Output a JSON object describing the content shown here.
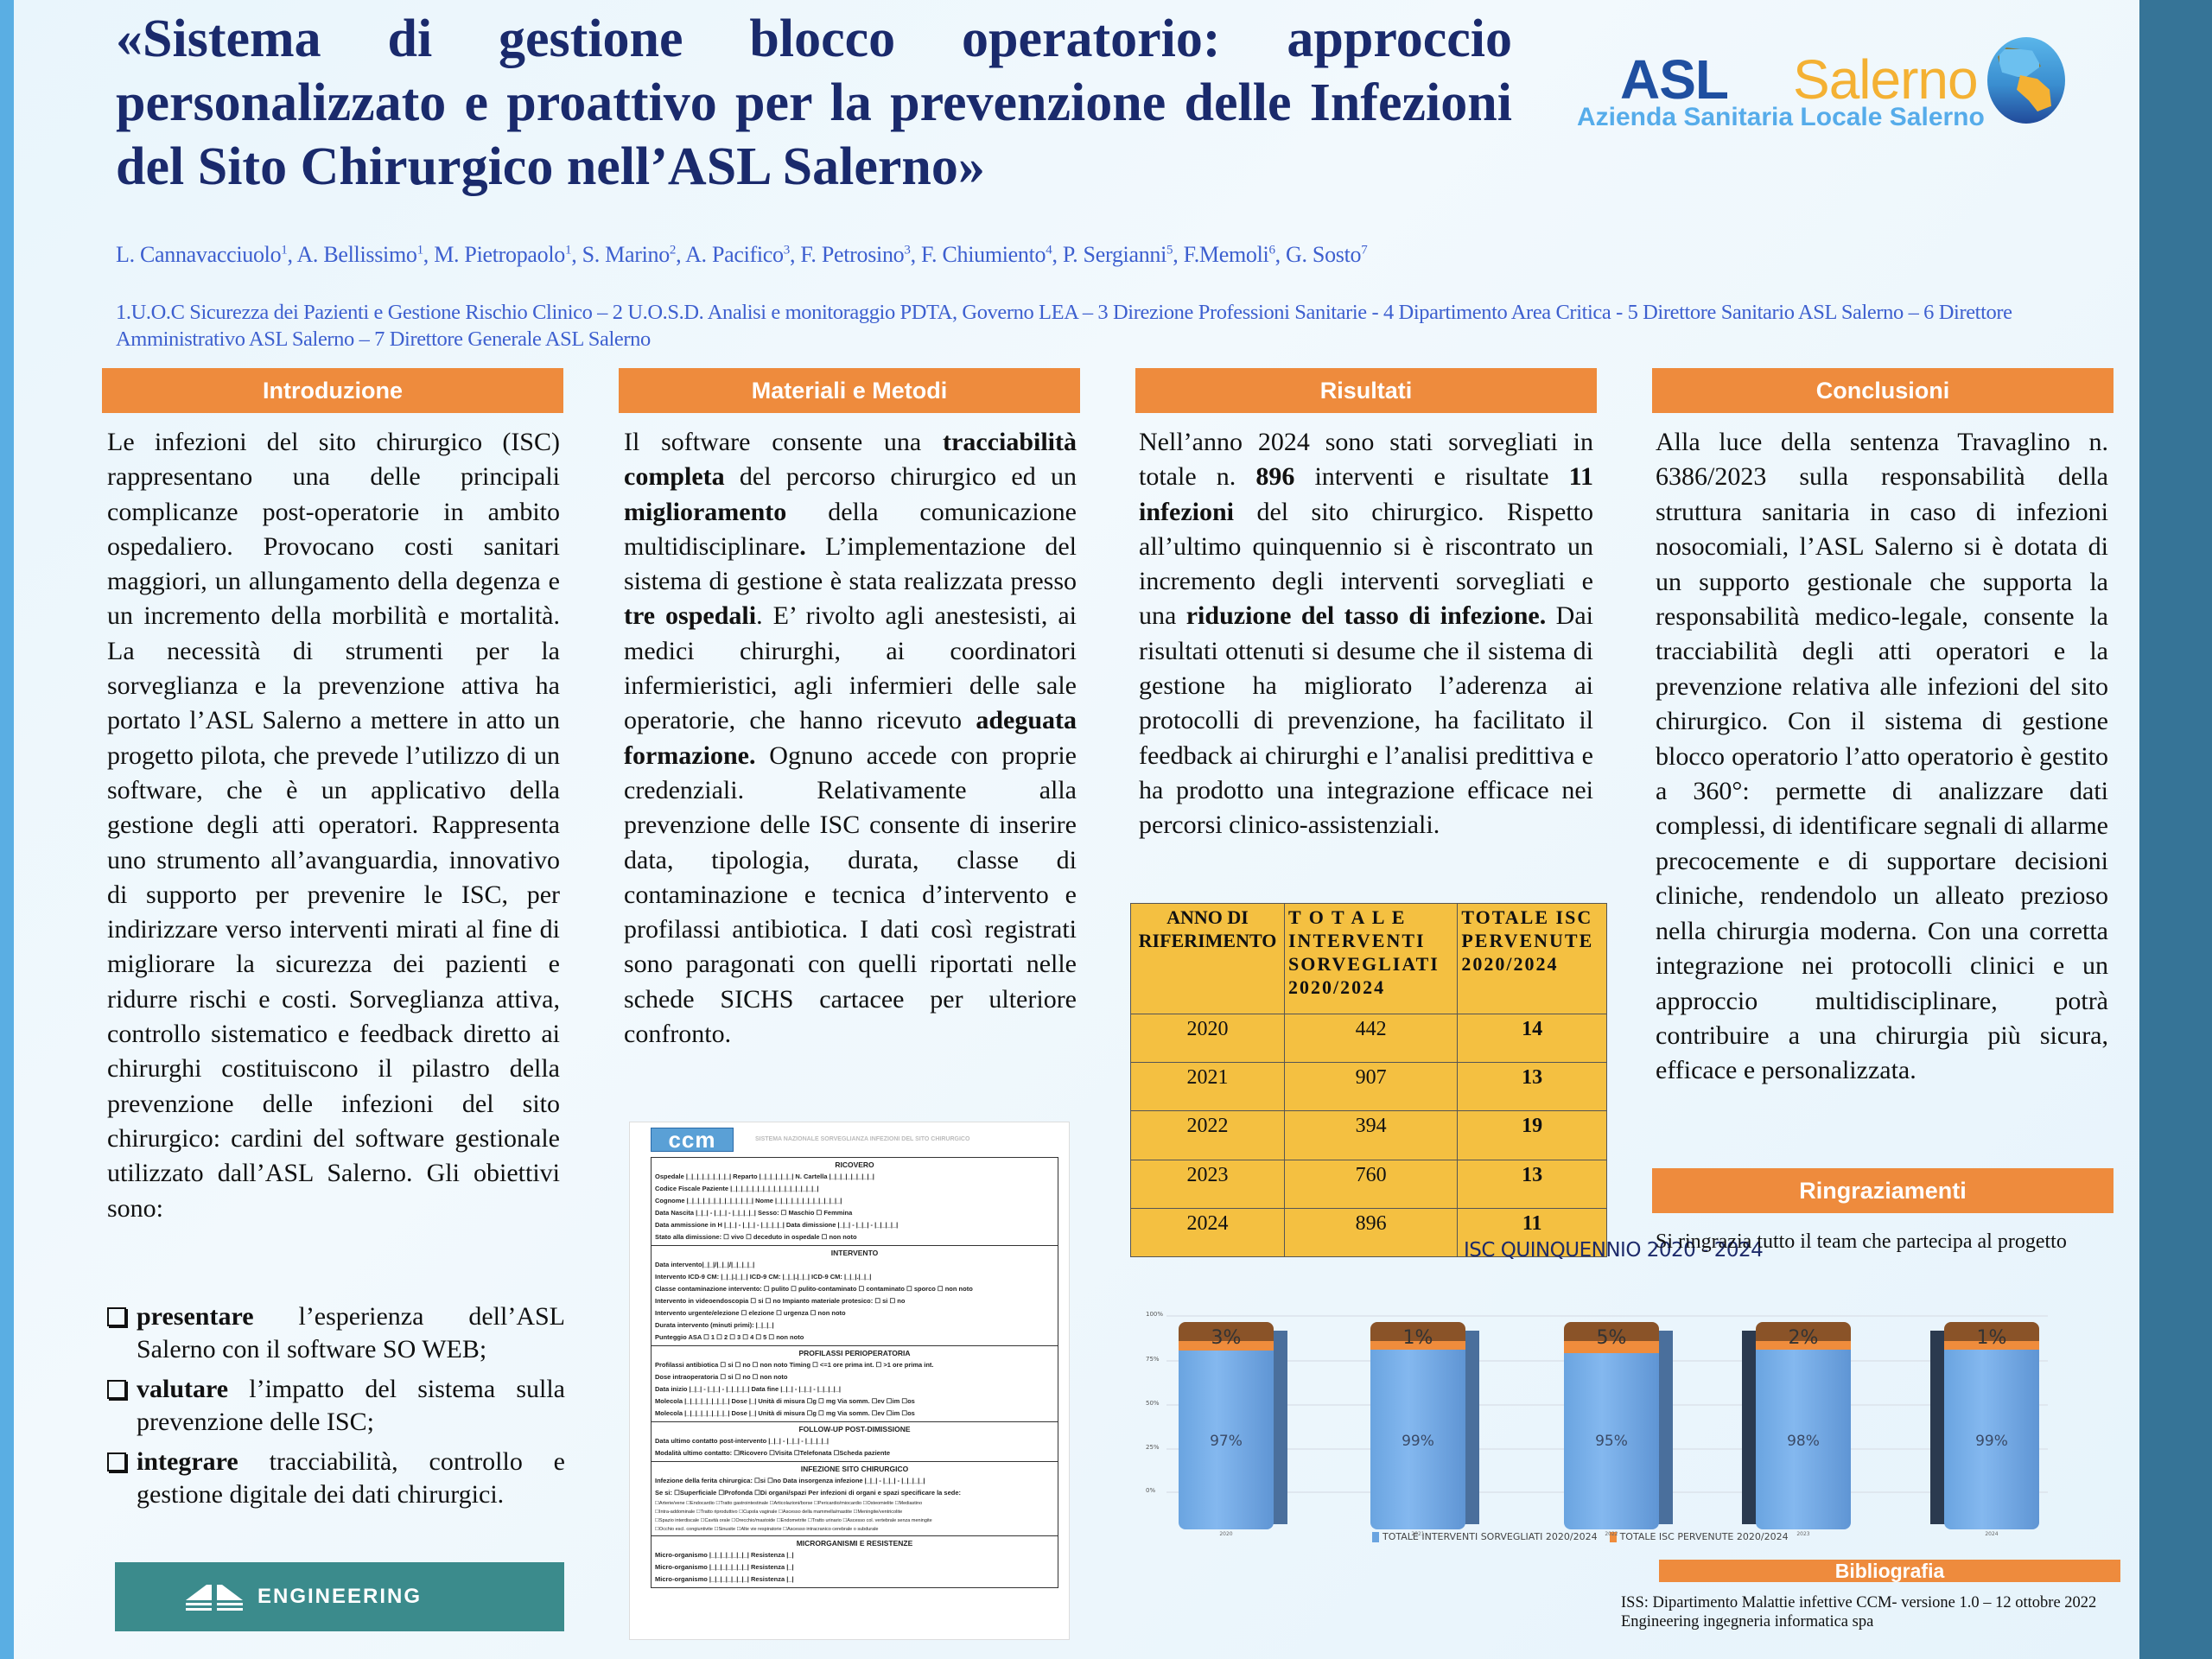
{
  "title": "«Sistema di gestione blocco operatorio: approccio personalizzato e proattivo per la prevenzione delle Infezioni del Sito Chirurgico nell’ASL Salerno»",
  "logo": {
    "asl": "ASL",
    "salerno": "Salerno",
    "subtitle": "Azienda Sanitaria Locale Salerno"
  },
  "authors": [
    {
      "name": "L. Cannavacciuolo",
      "sup": "1"
    },
    {
      "name": "A. Bellissimo",
      "sup": "1"
    },
    {
      "name": "M. Pietropaolo",
      "sup": "1"
    },
    {
      "name": "S. Marino",
      "sup": "2"
    },
    {
      "name": "A. Pacifico",
      "sup": "3"
    },
    {
      "name": "F. Petrosino",
      "sup": "3"
    },
    {
      "name": "F. Chiumiento",
      "sup": "4"
    },
    {
      "name": "P. Sergianni",
      "sup": "5"
    },
    {
      "name": "F.Memoli",
      "sup": "6"
    },
    {
      "name": "G. Sosto",
      "sup": "7"
    }
  ],
  "affiliations": "1.U.O.C Sicurezza dei Pazienti e Gestione Rischio Clinico – 2 U.O.S.D. Analisi e monitoraggio PDTA, Governo LEA – 3 Direzione Professioni Sanitarie - 4 Dipartimento Area Critica - 5 Direttore Sanitario ASL Salerno –  6 Direttore Amministrativo ASL Salerno – 7 Direttore Generale ASL Salerno",
  "sections": {
    "introduzione": {
      "header": "Introduzione",
      "body": "Le infezioni del sito chirurgico (ISC) rappresentano una delle principali complicanze post-operatorie in ambito ospedaliero. Provocano costi sanitari maggiori, un allungamento della degenza e un incremento della morbilità e mortalità. La necessità di strumenti per la sorveglianza e la prevenzione attiva ha portato l’ASL Salerno a mettere in atto un progetto pilota, che prevede l’utilizzo di un software, che è un applicativo della gestione degli atti operatori. Rappresenta uno strumento all’avanguardia, innovativo di supporto per prevenire le ISC, per indirizzare verso interventi mirati al fine di migliorare la sicurezza dei pazienti e ridurre rischi e costi. Sorveglianza attiva, controllo sistematico e feedback diretto ai chirurghi costituiscono il pilastro della prevenzione delle infezioni del sito chirurgico: cardini del software gestionale utilizzato dall’ASL Salerno. Gli obiettivi sono:",
      "objectives": [
        {
          "bold": "presentare",
          "text": " l’esperienza dell’ASL Salerno con il software SO WEB;"
        },
        {
          "bold": "valutare",
          "text": " l’impatto del sistema sulla prevenzione delle ISC;"
        },
        {
          "bold": "integrare",
          "text": " tracciabilità, controllo e gestione digitale dei dati chirurgici."
        }
      ]
    },
    "materiali": {
      "header": "Materiali e Metodi",
      "parts": [
        {
          "t": "Il software consente una "
        },
        {
          "b": "tracciabilità completa"
        },
        {
          "t": " del percorso chirurgico ed un "
        },
        {
          "b": "miglioramento"
        },
        {
          "t": " della comunicazione multidisciplinare"
        },
        {
          "b": "."
        },
        {
          "t": "  L’implementazione del sistema di gestione è stata realizzata presso "
        },
        {
          "b": "tre ospedali"
        },
        {
          "t": ". E’ rivolto agli anestesisti, ai medici chirurghi, ai coordinatori infermieristici, agli infermieri delle sale operatorie, che hanno ricevuto "
        },
        {
          "b": "adeguata formazione."
        },
        {
          "t": " Ognuno accede con proprie credenziali. Relativamente alla prevenzione delle ISC consente di inserire data, tipologia, durata, classe di contaminazione e tecnica d’intervento e profilassi antibiotica. I dati così registrati sono paragonati con quelli riportati nelle schede SICHS cartacee per ulteriore confronto."
        }
      ]
    },
    "risultati": {
      "header": "Risultati",
      "parts": [
        {
          "t": "Nell’anno 2024 sono stati sorvegliati in totale n. "
        },
        {
          "b": "896"
        },
        {
          "t": " interventi e risultate "
        },
        {
          "b": "11 infezioni"
        },
        {
          "t": " del sito chirurgico. Rispetto all’ultimo quinquennio si è riscontrato un incremento degli interventi sorvegliati e una "
        },
        {
          "b": "riduzione del tasso di infezione."
        },
        {
          "t": " Dai risultati ottenuti si desume che il sistema di gestione ha migliorato l’aderenza ai protocolli di prevenzione, ha facilitato il feedback ai chirurghi e l’analisi predittiva e ha prodotto una integrazione efficace nei percorsi clinico-assistenziali."
        }
      ]
    },
    "conclusioni": {
      "header": "Conclusioni",
      "body": "Alla luce della sentenza Travaglino n. 6386/2023 sulla responsabilità della struttura sanitaria in caso di infezioni nosocomiali,  l’ASL Salerno si è dotata di un supporto gestionale che supporta la responsabilità medico-legale, consente la tracciabilità degli atti operatori e la prevenzione relativa alle infezioni del sito chirurgico. Con il sistema di gestione blocco operatorio l’atto operatorio è gestito a 360°: permette di analizzare dati complessi, di identificare segnali di allarme precocemente e di supportare decisioni cliniche, rendendolo un alleato prezioso nella chirurgia moderna. Con una corretta integrazione nei protocolli clinici e un approccio multidisciplinare, potrà contribuire a una chirurgia più sicura, efficace e personalizzata."
    },
    "ringraziamenti": {
      "header": "Ringraziamenti",
      "body": "Si ringrazia tutto il team che partecipa al progetto"
    },
    "bibliografia": {
      "header": "Bibliografia",
      "items": [
        "ISS: Dipartimento Malattie infettive CCM- versione 1.0 – 12 ottobre 2022",
        "Engineering ingegneria informatica spa"
      ]
    }
  },
  "table": {
    "headers": [
      "ANNO DI RIFERIMENTO",
      "T O T A L E INTERVENTI SORVEGLIATI 2020/2024",
      "TOTALE ISC PERVENUTE 2020/2024"
    ],
    "rows": [
      {
        "year": "2020",
        "interventi": "442",
        "isc": "14"
      },
      {
        "year": "2021",
        "interventi": "907",
        "isc": "13"
      },
      {
        "year": "2022",
        "interventi": "394",
        "isc": "19"
      },
      {
        "year": "2023",
        "interventi": "760",
        "isc": "13"
      },
      {
        "year": "2024",
        "interventi": "896",
        "isc": "11"
      }
    ]
  },
  "form_image": {
    "logo": "ccm",
    "system_title": "SISTEMA NAZIONALE SORVEGLIANZA INFEZIONI DEL SITO CHIRURGICO",
    "blocks": [
      {
        "title": "RICOVERO",
        "lines": [
          "Ospedale |_|_|_|_|_|_|_|_| Reparto |_|_|_|_|_|_| N. Cartella |_|_|_|_|_|_|_|_|",
          "Codice Fiscale Paziente |_|_|_|_|_|_|_|_|_|_|_|_|_|_|_|_|",
          "Cognome |_|_|_|_|_|_|_|_|_|_|_|_|     Nome |_|_|_|_|_|_|_|_|_|_|_|_|",
          "Data Nascita |_|_| - |_|_| - |_|_|_|_|          Sesso: ☐ Maschio  ☐ Femmina",
          "Data ammissione in H |_|_| - |_|_| - |_|_|_|_| Data dimissione |_|_| - |_|_| - |_|_|_|_|",
          "Stato alla dimissione: ☐ vivo ☐ deceduto in ospedale ☐ non noto"
        ]
      },
      {
        "title": "INTERVENTO",
        "lines": [
          "Data intervento|_|_|/|_|_|/|_|_|_|_|",
          "Intervento ICD-9 CM: |_|_|.|_|_| ICD-9 CM: |_|_|.|_|_| ICD-9 CM: |_|_|.|_|_|",
          "Classe contaminazione intervento: ☐ pulito ☐ pulito-contaminato ☐ contaminato ☐ sporco ☐ non noto",
          "Intervento in videoendoscopia ☐ si ☐ no   Impianto materiale protesico: ☐ si ☐ no",
          "Intervento urgente/elezione  ☐ elezione ☐ urgenza ☐ non noto",
          "Durata intervento (minuti primi): |_|_|_|",
          "Punteggio ASA      ☐ 1   ☐ 2   ☐ 3   ☐ 4   ☐ 5   ☐ non noto"
        ]
      },
      {
        "title": "PROFILASSI PERIOPERATORIA",
        "lines": [
          "Profilassi antibiotica ☐ si ☐ no ☐ non noto   Timing ☐ <=1 ore prima int.  ☐ >1 ore prima int.",
          "Dose intraoperatoria ☐ si ☐ no ☐ non noto",
          "Data inizio |_|_| - |_|_| - |_|_|_|_|        Data fine |_|_| - |_|_| - |_|_|_|_|",
          "Molecola |_|_|_|_|_|_|_|_| Dose |_| Unità di misura ☐g ☐ mg Via somm. ☐ev ☐im ☐os",
          "Molecola |_|_|_|_|_|_|_|_| Dose |_| Unità di misura ☐g ☐ mg Via somm. ☐ev ☐im ☐os"
        ]
      },
      {
        "title": "FOLLOW-UP POST-DIMISSIONE",
        "lines": [
          "Data ultimo contatto post-intervento |_|_| - |_|_| - |_|_|_|_|",
          "Modalità ultimo contatto:  ☐Ricovero  ☐Visita  ☐Telefonata  ☐Scheda paziente"
        ]
      },
      {
        "title": "INFEZIONE SITO CHIRURGICO",
        "lines": [
          "Infezione della ferita chirurgica: ☐si ☐no   Data insorgenza infezione |_|_| - |_|_| - |_|_|_|_|",
          "Se si:  ☐Superficiale  ☐Profonda  ☐Di organi/spazi Per infezioni di organi e spazi specificare la sede:"
        ],
        "small": [
          "☐Arterie/vene ☐Endocardio ☐Tratto gastrointestinale ☐Articolazioni/borse ☐Pericardio/miocardio ☐Osteomielite ☐Mediastino",
          "☐Intra-addominale ☐Tratto riproduttivo ☐Cupola vaginale ☐Ascesso della mammella/mastite ☐Meningite/ventricolite",
          "☐Spazio interdiscale ☐Cavità orale ☐Orecchio/mastoide ☐Endometrite ☐Tratto urinario ☐Ascesso col. vertebrale senza meningite",
          "☐Occhio escl. congiuntivite ☐Sinusite ☐Alte vie respiratorie ☐Ascesso intracranico cerebrale o subdurale"
        ]
      },
      {
        "title": "MICRORGANISMI E RESISTENZE",
        "lines": [
          "Micro-organismo |_|_|_|_|_|_|_|        Resistenza |_|",
          "Micro-organismo |_|_|_|_|_|_|_|        Resistenza |_|",
          "Micro-organismo |_|_|_|_|_|_|_|        Resistenza |_|"
        ]
      }
    ]
  },
  "engineering_logo": {
    "text": "ENGINEERING"
  },
  "colors": {
    "section_header": "#ee8b3d",
    "title": "#1a2a6c",
    "authors": "#3d5fcf",
    "table_bg": "#f4c041",
    "bar_blue": "#6aa4e0",
    "bar_orange": "#ef8c3c",
    "right_strip": "#367497",
    "left_strip": "#5aaee3"
  },
  "chart_data": {
    "type": "bar",
    "stacked": true,
    "percent_stacked": true,
    "three_d": true,
    "title": "ISC QUINQUENNIO 2020 - 2024",
    "categories": [
      "2020",
      "2021",
      "2022",
      "2023",
      "2024"
    ],
    "series": [
      {
        "name": "TOTALE INTERVENTI SORVEGLIATI 2020/2024",
        "values": [
          97,
          99,
          95,
          98,
          99
        ],
        "labels": [
          "97%",
          "99%",
          "95%",
          "98%",
          "99%"
        ],
        "color": "#6aa4e0"
      },
      {
        "name": "TOTALE ISC PERVENUTE 2020/2024",
        "values": [
          3,
          1,
          5,
          2,
          1
        ],
        "labels": [
          "3%",
          "1%",
          "5%",
          "2%",
          "1%"
        ],
        "color": "#ef8c3c"
      }
    ],
    "y_ticks": [
      "0%",
      "25%",
      "50%",
      "75%",
      "100%"
    ],
    "ylim": [
      0,
      100
    ],
    "xlabel": "",
    "ylabel": "",
    "grid": true,
    "legend_position": "bottom"
  }
}
